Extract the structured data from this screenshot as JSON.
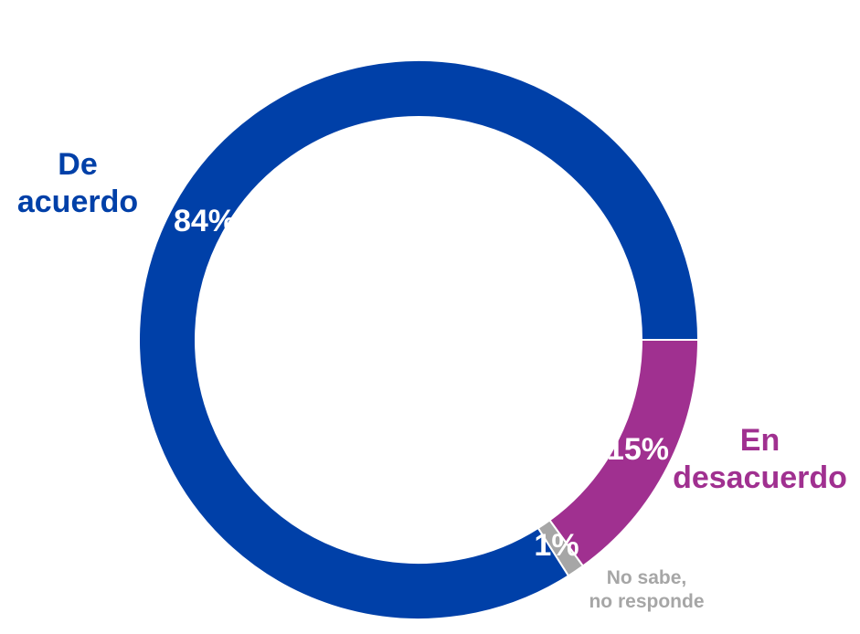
{
  "chart_data": {
    "type": "pie",
    "donut": true,
    "title": "",
    "legend": "none",
    "categories": [
      "De\nacuerdo",
      "En\ndesacuerdo",
      "No sabe,\nno responde"
    ],
    "values": [
      84,
      15,
      1
    ],
    "data_labels": [
      "84%",
      "15%",
      "1%"
    ],
    "colors": [
      "#0040A8",
      "#A03090",
      "#A6A6A6"
    ],
    "label_colors": [
      "#0040A8",
      "#A03090",
      "#A6A6A6"
    ]
  }
}
